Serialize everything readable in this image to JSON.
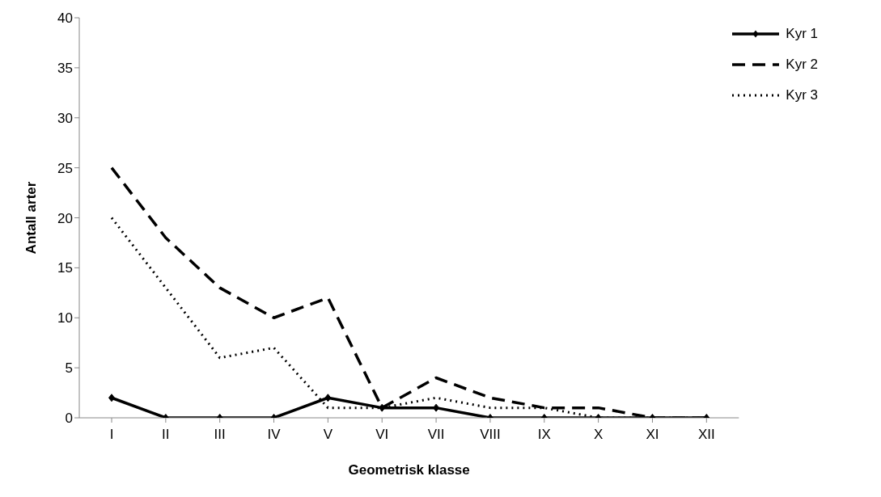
{
  "chart_data": {
    "type": "line",
    "xlabel": "Geometrisk klasse",
    "ylabel": "Antall arter",
    "categories": [
      "I",
      "II",
      "III",
      "IV",
      "V",
      "VI",
      "VII",
      "VIII",
      "IX",
      "X",
      "XI",
      "XII"
    ],
    "series": [
      {
        "name": "Kyr 1",
        "color": "#000000",
        "marker": "diamond",
        "line_style": "solid",
        "values": [
          2,
          0,
          0,
          0,
          2,
          1,
          1,
          0,
          0,
          0,
          0,
          0
        ]
      },
      {
        "name": "Kyr 2",
        "color": "#000000",
        "marker": "none",
        "line_style": "dashed",
        "values": [
          25,
          18,
          13,
          10,
          12,
          1,
          4,
          2,
          1,
          1,
          0,
          0
        ]
      },
      {
        "name": "Kyr 3",
        "color": "#000000",
        "marker": "none",
        "line_style": "dotted",
        "values": [
          20,
          13,
          6,
          7,
          1,
          1,
          2,
          1,
          1,
          0,
          0,
          0
        ]
      }
    ],
    "ylim": [
      0,
      40
    ],
    "yticks": [
      0,
      5,
      10,
      15,
      20,
      25,
      30,
      35,
      40
    ],
    "grid": false,
    "legend": "top right"
  }
}
